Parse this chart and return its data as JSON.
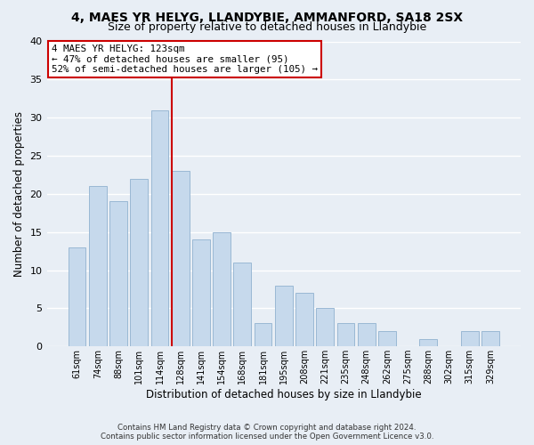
{
  "title": "4, MAES YR HELYG, LLANDYBIE, AMMANFORD, SA18 2SX",
  "subtitle": "Size of property relative to detached houses in Llandybie",
  "xlabel": "Distribution of detached houses by size in Llandybie",
  "ylabel": "Number of detached properties",
  "bar_color": "#c6d9ec",
  "bar_edge_color": "#9ab8d4",
  "background_color": "#e8eef5",
  "grid_color": "#ffffff",
  "bins": [
    "61sqm",
    "74sqm",
    "88sqm",
    "101sqm",
    "114sqm",
    "128sqm",
    "141sqm",
    "154sqm",
    "168sqm",
    "181sqm",
    "195sqm",
    "208sqm",
    "221sqm",
    "235sqm",
    "248sqm",
    "262sqm",
    "275sqm",
    "288sqm",
    "302sqm",
    "315sqm",
    "329sqm"
  ],
  "values": [
    13,
    21,
    19,
    22,
    31,
    23,
    14,
    15,
    11,
    3,
    8,
    7,
    5,
    3,
    3,
    2,
    0,
    1,
    0,
    2,
    2
  ],
  "ylim": [
    0,
    40
  ],
  "yticks": [
    0,
    5,
    10,
    15,
    20,
    25,
    30,
    35,
    40
  ],
  "marker_color": "#cc0000",
  "annotation_title": "4 MAES YR HELYG: 123sqm",
  "annotation_line1": "← 47% of detached houses are smaller (95)",
  "annotation_line2": "52% of semi-detached houses are larger (105) →",
  "annotation_box_edge_color": "#cc0000",
  "footer1": "Contains HM Land Registry data © Crown copyright and database right 2024.",
  "footer2": "Contains public sector information licensed under the Open Government Licence v3.0."
}
